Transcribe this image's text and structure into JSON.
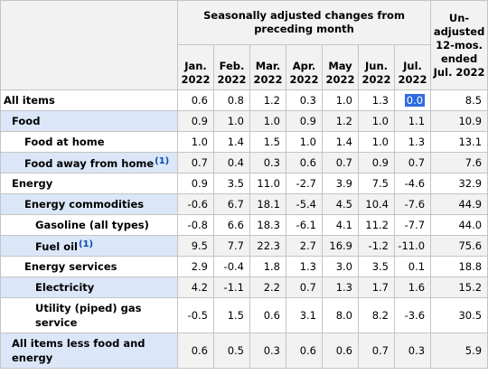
{
  "header": {
    "span_title": "Seasonally adjusted changes from preceding month",
    "unadjusted": "Un-adjusted 12-mos. ended Jul. 2022",
    "months": [
      {
        "mon": "Jan.",
        "year": "2022"
      },
      {
        "mon": "Feb.",
        "year": "2022"
      },
      {
        "mon": "Mar.",
        "year": "2022"
      },
      {
        "mon": "Apr.",
        "year": "2022"
      },
      {
        "mon": "May",
        "year": "2022"
      },
      {
        "mon": "Jun.",
        "year": "2022"
      },
      {
        "mon": "Jul.",
        "year": "2022"
      }
    ]
  },
  "rows": [
    {
      "label": "All items",
      "values": [
        "0.6",
        "0.8",
        "1.2",
        "0.3",
        "1.0",
        "1.3",
        "0.0",
        "8.5"
      ]
    },
    {
      "label": "Food",
      "values": [
        "0.9",
        "1.0",
        "1.0",
        "0.9",
        "1.2",
        "1.0",
        "1.1",
        "10.9"
      ]
    },
    {
      "label": "Food at home",
      "values": [
        "1.0",
        "1.4",
        "1.5",
        "1.0",
        "1.4",
        "1.0",
        "1.3",
        "13.1"
      ]
    },
    {
      "label": "Food away from home",
      "note": "(1)",
      "values": [
        "0.7",
        "0.4",
        "0.3",
        "0.6",
        "0.7",
        "0.9",
        "0.7",
        "7.6"
      ]
    },
    {
      "label": "Energy",
      "values": [
        "0.9",
        "3.5",
        "11.0",
        "-2.7",
        "3.9",
        "7.5",
        "-4.6",
        "32.9"
      ]
    },
    {
      "label": "Energy commodities",
      "values": [
        "-0.6",
        "6.7",
        "18.1",
        "-5.4",
        "4.5",
        "10.4",
        "-7.6",
        "44.9"
      ]
    },
    {
      "label": "Gasoline (all types)",
      "values": [
        "-0.8",
        "6.6",
        "18.3",
        "-6.1",
        "4.1",
        "11.2",
        "-7.7",
        "44.0"
      ]
    },
    {
      "label": "Fuel oil",
      "note": "(1)",
      "values": [
        "9.5",
        "7.7",
        "22.3",
        "2.7",
        "16.9",
        "-1.2",
        "-11.0",
        "75.6"
      ]
    },
    {
      "label": "Energy services",
      "values": [
        "2.9",
        "-0.4",
        "1.8",
        "1.3",
        "3.0",
        "3.5",
        "0.1",
        "18.8"
      ]
    },
    {
      "label": "Electricity",
      "values": [
        "4.2",
        "-1.1",
        "2.2",
        "0.7",
        "1.3",
        "1.7",
        "1.6",
        "15.2"
      ]
    },
    {
      "label": "Utility (piped) gas service",
      "values": [
        "-0.5",
        "1.5",
        "0.6",
        "3.1",
        "8.0",
        "8.2",
        "-3.6",
        "30.5"
      ]
    },
    {
      "label": "All items less food and energy",
      "values": [
        "0.6",
        "0.5",
        "0.3",
        "0.6",
        "0.6",
        "0.7",
        "0.3",
        "5.9"
      ]
    }
  ]
}
